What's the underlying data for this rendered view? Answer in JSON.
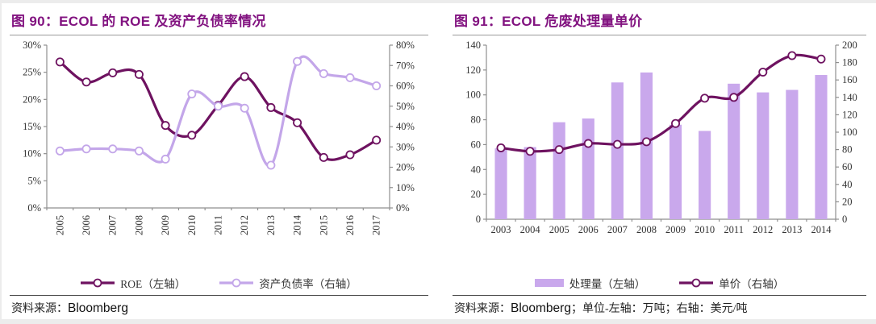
{
  "page": {
    "background": "#ececec",
    "panel_background": "#ffffff",
    "title_color": "#821380",
    "axis_color": "#8f8f8f",
    "tick_text_color": "#333333"
  },
  "chart_data": [
    {
      "id": "fig90",
      "type": "line",
      "title": "图 90：ECOL 的 ROE 及资产负债率情况",
      "categories": [
        "2005",
        "2006",
        "2007",
        "2008",
        "2009",
        "2010",
        "2011",
        "2012",
        "2013",
        "2014",
        "2015",
        "2016",
        "2017"
      ],
      "series": [
        {
          "name": "ROE（左轴）",
          "type": "line",
          "axis": "left",
          "color": "#6E1260",
          "values": [
            26.9,
            23.2,
            24.9,
            24.6,
            15.2,
            13.4,
            18.9,
            24.2,
            18.5,
            15.7,
            9.3,
            9.8,
            12.5
          ]
        },
        {
          "name": "资产负债率（右轴）",
          "type": "line",
          "axis": "right",
          "color": "#C3A6E9",
          "values": [
            28,
            29,
            29,
            28,
            24,
            56,
            50,
            49,
            21,
            72,
            66,
            64,
            60
          ]
        }
      ],
      "left_axis": {
        "min": 0,
        "max": 30,
        "step": 5,
        "format": "percent"
      },
      "right_axis": {
        "min": 0,
        "max": 80,
        "step": 10,
        "format": "percent"
      },
      "grid": false,
      "legend_position": "bottom",
      "rotate_x_labels": true,
      "footer": {
        "prefix": "资料来源：",
        "source": "Bloomberg",
        "suffix": ""
      }
    },
    {
      "id": "fig91",
      "type": "bar",
      "title": "图 91：ECOL 危废处理量单价",
      "categories": [
        "2003",
        "2004",
        "2005",
        "2006",
        "2007",
        "2008",
        "2009",
        "2010",
        "2011",
        "2012",
        "2013",
        "2014"
      ],
      "series": [
        {
          "name": "处理量（左轴）",
          "type": "bar",
          "axis": "left",
          "color": "#C9A8EC",
          "values": [
            57,
            58,
            78,
            81,
            110,
            118,
            76,
            71,
            109,
            102,
            104,
            116
          ]
        },
        {
          "name": "单价（右轴）",
          "type": "line",
          "axis": "right",
          "color": "#6E1260",
          "values": [
            82,
            78,
            80,
            87,
            86,
            89,
            110,
            139,
            140,
            169,
            188,
            184
          ]
        }
      ],
      "left_axis": {
        "min": 0,
        "max": 140,
        "step": 20,
        "format": "plain"
      },
      "right_axis": {
        "min": 0,
        "max": 200,
        "step": 20,
        "format": "plain"
      },
      "grid": false,
      "legend_position": "bottom",
      "rotate_x_labels": false,
      "footer": {
        "prefix": "资料来源：",
        "source": "Bloomberg",
        "suffix": "；单位-左轴：万吨；右轴：美元/吨"
      }
    }
  ]
}
